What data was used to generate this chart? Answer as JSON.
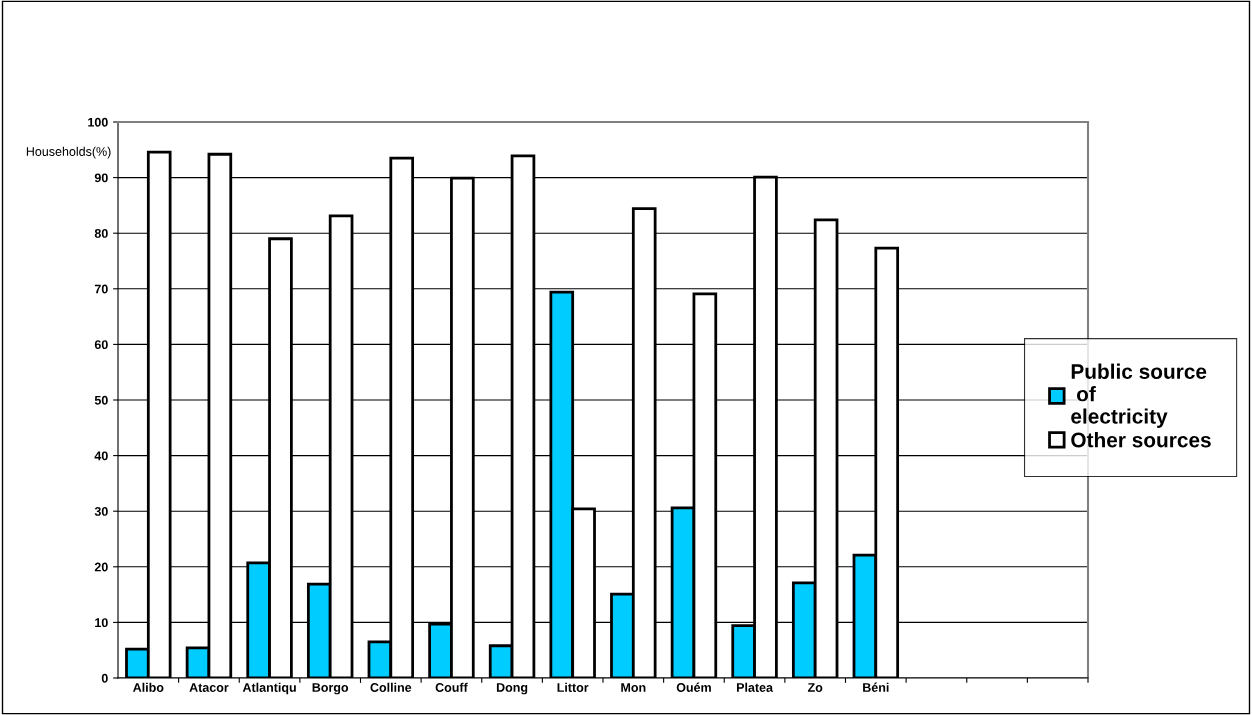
{
  "chart_data": {
    "type": "bar",
    "ylabel": "Households(%)",
    "categories": [
      "Alibo",
      "Atacor",
      "Atlantiqu",
      "Borgo",
      "Colline",
      "Couff",
      "Dong",
      "Littor",
      "Mon",
      "Ouém",
      "Platea",
      "Zo",
      "Béni",
      null,
      null,
      null
    ],
    "series": [
      {
        "name": "Public source\n of\nelectricity",
        "color": "#00ccff",
        "values": [
          5.2,
          5.4,
          20.7,
          16.9,
          6.5,
          9.7,
          5.8,
          69.4,
          15.1,
          30.6,
          9.4,
          17.1,
          22.1,
          null,
          null,
          null
        ]
      },
      {
        "name": "Other sources",
        "color": "#ffffff",
        "values": [
          94.6,
          94.2,
          79.0,
          83.1,
          93.5,
          89.9,
          93.9,
          30.4,
          84.4,
          69.1,
          90.1,
          82.4,
          77.3,
          null,
          null,
          null
        ]
      }
    ],
    "ylim": [
      0,
      100
    ],
    "yticks": [
      0,
      10,
      20,
      30,
      40,
      50,
      60,
      70,
      80,
      90,
      100
    ],
    "grid": "y",
    "legend": "right"
  }
}
